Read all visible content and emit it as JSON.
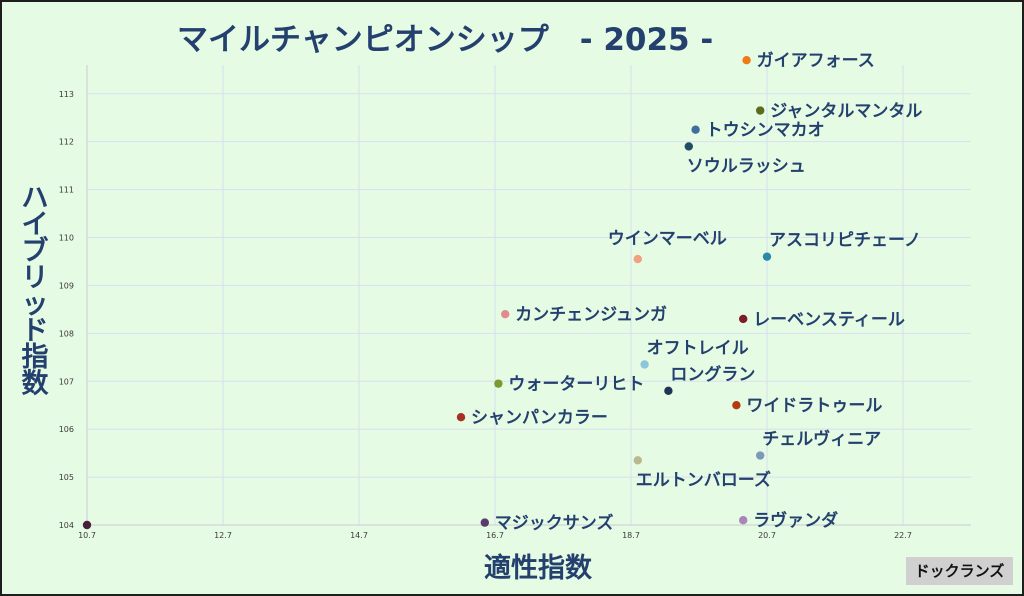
{
  "chart_data": {
    "type": "scatter",
    "title": "マイルチャンピオンシップ　- 2025 -",
    "xlabel": "適性指数",
    "ylabel": "ハイブリッド指数",
    "xlim": [
      10.7,
      23.7
    ],
    "ylim": [
      104,
      113.6
    ],
    "x_ticks": [
      "10.7",
      "12.7",
      "14.7",
      "16.7",
      "18.7",
      "20.7",
      "22.7"
    ],
    "y_ticks": [
      "104",
      "105",
      "106",
      "107",
      "108",
      "109",
      "110",
      "111",
      "112",
      "113"
    ],
    "grid": true,
    "points": [
      {
        "name": "ガイアフォース",
        "x": 20.4,
        "y": 113.7,
        "color": "#ef7a16",
        "label_pos": "right"
      },
      {
        "name": "ジャンタルマンタル",
        "x": 20.6,
        "y": 112.65,
        "color": "#5b6b1f",
        "label_pos": "right"
      },
      {
        "name": "トウシンマカオ",
        "x": 19.65,
        "y": 112.25,
        "color": "#3f6f9e",
        "label_pos": "right"
      },
      {
        "name": "ソウルラッシュ",
        "x": 19.55,
        "y": 111.9,
        "color": "#1f4e63",
        "label_pos": "below"
      },
      {
        "name": "ウインマーベル",
        "x": 18.8,
        "y": 109.55,
        "color": "#f2a07d",
        "label_pos": "above"
      },
      {
        "name": "アスコリピチェーノ",
        "x": 20.7,
        "y": 109.6,
        "color": "#2a8aa6",
        "label_pos": "above-right"
      },
      {
        "name": "カンチェンジュンガ",
        "x": 16.85,
        "y": 108.4,
        "color": "#e08c8c",
        "label_pos": "right"
      },
      {
        "name": "レーベンスティール",
        "x": 20.35,
        "y": 108.3,
        "color": "#7a1f28",
        "label_pos": "right"
      },
      {
        "name": "オフトレイル",
        "x": 18.9,
        "y": 107.35,
        "color": "#8ec5dc",
        "label_pos": "above-right"
      },
      {
        "name": "ウォーターリヒト",
        "x": 16.75,
        "y": 106.95,
        "color": "#7a9a32",
        "label_pos": "right"
      },
      {
        "name": "ロングラン",
        "x": 19.25,
        "y": 106.8,
        "color": "#1f3556",
        "label_pos": "above-right"
      },
      {
        "name": "ワイドラトゥール",
        "x": 20.25,
        "y": 106.5,
        "color": "#b53a12",
        "label_pos": "right"
      },
      {
        "name": "シャンパンカラー",
        "x": 16.2,
        "y": 106.25,
        "color": "#a83024",
        "label_pos": "right"
      },
      {
        "name": "チェルヴィニア",
        "x": 20.6,
        "y": 105.45,
        "color": "#7e99b8",
        "label_pos": "above-right"
      },
      {
        "name": "エルトンバローズ",
        "x": 18.8,
        "y": 105.35,
        "color": "#b9b98f",
        "label_pos": "below"
      },
      {
        "name": "マジックサンズ",
        "x": 16.55,
        "y": 104.05,
        "color": "#5a3b6b",
        "label_pos": "right"
      },
      {
        "name": "ラヴァンダ",
        "x": 20.35,
        "y": 104.1,
        "color": "#a884b8",
        "label_pos": "right"
      },
      {
        "name": "",
        "x": 10.7,
        "y": 104,
        "color": "#4a1f3a",
        "label_pos": "none"
      }
    ]
  },
  "watermark": "ドックランズ"
}
